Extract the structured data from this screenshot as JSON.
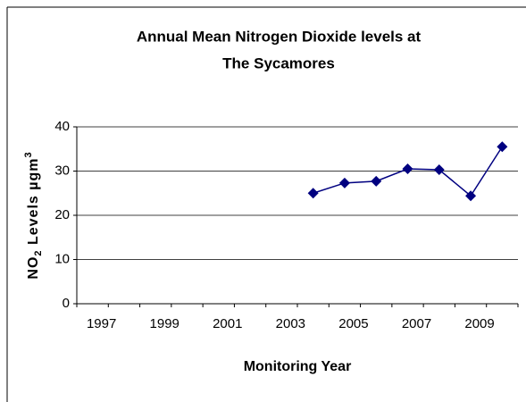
{
  "chart_data": {
    "type": "line",
    "title": [
      "Annual Mean Nitrogen Dioxide levels at",
      "The Sycamores"
    ],
    "y_label": {
      "main": "NO",
      "sub": "2",
      "rest": " Levels µgm",
      "sup": "3"
    },
    "x_label": "Monitoring Year",
    "categories": [
      "1997",
      null,
      "1999",
      null,
      "2001",
      null,
      "2003",
      null,
      "2005",
      null,
      "2007",
      null,
      "2009",
      null
    ],
    "series": [
      {
        "name": "The Sycamores",
        "color": "#000080",
        "values": [
          null,
          null,
          null,
          null,
          null,
          null,
          null,
          25,
          27.3,
          27.7,
          30.5,
          30.3,
          24.4,
          35.5
        ]
      }
    ],
    "ylim": [
      0,
      40
    ],
    "yticks": [
      0,
      10,
      20,
      30,
      40
    ],
    "grid": true
  }
}
